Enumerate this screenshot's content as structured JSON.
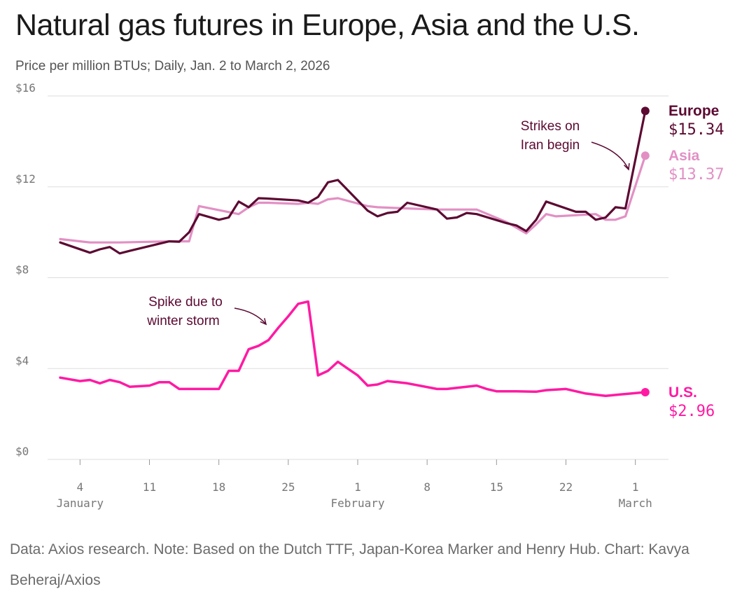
{
  "title": "Natural gas futures in Europe, Asia and the U.S.",
  "subtitle": "Price per million BTUs; Daily, Jan. 2 to March 2, 2026",
  "footer": "Data: Axios research. Note: Based on the Dutch TTF, Japan-Korea Marker and Henry Hub. Chart: Kavya Beheraj/Axios",
  "colors": {
    "europe": "#5c0a32",
    "asia": "#e290c4",
    "us": "#ff1aa3",
    "grid": "#dddddd",
    "axis_text": "#777777"
  },
  "chart_data": {
    "type": "line",
    "title": "Natural gas futures in Europe, Asia and the U.S.",
    "xlabel": "",
    "ylabel": "Price per million BTUs",
    "ylim": [
      0,
      16
    ],
    "yticks": [
      {
        "value": 16,
        "label": "$16"
      },
      {
        "value": 12,
        "label": "$12"
      },
      {
        "value": 8,
        "label": "$8"
      },
      {
        "value": 4,
        "label": "$4"
      },
      {
        "value": 0,
        "label": "$0"
      }
    ],
    "xlim": [
      2,
      62
    ],
    "xticks": [
      {
        "day": 4,
        "label": "4"
      },
      {
        "day": 11,
        "label": "11"
      },
      {
        "day": 18,
        "label": "18"
      },
      {
        "day": 25,
        "label": "25"
      },
      {
        "day": 32,
        "label": "1"
      },
      {
        "day": 39,
        "label": "8"
      },
      {
        "day": 46,
        "label": "15"
      },
      {
        "day": 53,
        "label": "22"
      },
      {
        "day": 60,
        "label": "1"
      }
    ],
    "month_labels": [
      {
        "day": 4,
        "label": "January"
      },
      {
        "day": 32,
        "label": "February"
      },
      {
        "day": 60,
        "label": "March"
      }
    ],
    "series": [
      {
        "name": "Europe",
        "end_label": "$15.34",
        "days": [
          2,
          5,
          6,
          7,
          8,
          9,
          13,
          14,
          15,
          16,
          18,
          19,
          20,
          21,
          22,
          23,
          26,
          27,
          28,
          29,
          30,
          33,
          34,
          35,
          36,
          37,
          40,
          41,
          42,
          43,
          44,
          47,
          48,
          49,
          50,
          51,
          54,
          55,
          56,
          57,
          58,
          59,
          61
        ],
        "values": [
          9.55,
          9.1,
          9.25,
          9.35,
          9.07,
          9.18,
          9.6,
          9.58,
          10.0,
          10.8,
          10.55,
          10.65,
          11.35,
          11.1,
          11.5,
          11.48,
          11.4,
          11.3,
          11.55,
          12.2,
          12.3,
          10.95,
          10.7,
          10.85,
          10.9,
          11.3,
          11.0,
          10.6,
          10.65,
          10.85,
          10.8,
          10.4,
          10.3,
          10.05,
          10.55,
          11.35,
          10.9,
          10.9,
          10.55,
          10.65,
          11.1,
          11.05,
          15.34
        ]
      },
      {
        "name": "Asia",
        "end_label": "$13.37",
        "days": [
          2,
          5,
          8,
          13,
          14,
          15,
          16,
          20,
          21,
          22,
          23,
          26,
          27,
          28,
          29,
          30,
          33,
          34,
          37,
          40,
          44,
          47,
          48,
          49,
          50,
          51,
          52,
          56,
          57,
          58,
          59,
          61
        ],
        "values": [
          9.7,
          9.55,
          9.55,
          9.6,
          9.6,
          9.6,
          11.15,
          10.8,
          11.1,
          11.3,
          11.3,
          11.25,
          11.3,
          11.25,
          11.45,
          11.5,
          11.15,
          11.1,
          11.05,
          11.0,
          11.0,
          10.45,
          10.2,
          9.95,
          10.35,
          10.8,
          10.7,
          10.8,
          10.55,
          10.55,
          10.7,
          13.37
        ]
      },
      {
        "name": "U.S.",
        "end_label": "$2.96",
        "days": [
          2,
          4,
          5,
          6,
          7,
          8,
          9,
          11,
          12,
          13,
          14,
          15,
          17,
          18,
          19,
          20,
          21,
          22,
          23,
          24,
          25,
          26,
          27,
          28,
          29,
          30,
          31,
          32,
          33,
          34,
          35,
          37,
          40,
          41,
          44,
          45,
          46,
          47,
          48,
          50,
          51,
          53,
          55,
          56,
          57,
          61
        ],
        "values": [
          3.6,
          3.45,
          3.5,
          3.35,
          3.5,
          3.4,
          3.2,
          3.25,
          3.4,
          3.4,
          3.1,
          3.1,
          3.1,
          3.1,
          3.9,
          3.9,
          4.85,
          5.0,
          5.25,
          5.8,
          6.3,
          6.85,
          6.95,
          3.7,
          3.9,
          4.3,
          4.0,
          3.7,
          3.25,
          3.3,
          3.45,
          3.35,
          3.1,
          3.1,
          3.25,
          3.1,
          3.0,
          3.0,
          3.0,
          2.98,
          3.05,
          3.1,
          2.9,
          2.85,
          2.8,
          2.96
        ]
      }
    ],
    "annotations": [
      {
        "text_lines": [
          "Strikes on",
          "Iran begin"
        ],
        "target_series": "Europe",
        "target_day": 59
      },
      {
        "text_lines": [
          "Spike due to",
          "winter storm"
        ],
        "target_series": "U.S.",
        "target_day": 26
      }
    ]
  }
}
